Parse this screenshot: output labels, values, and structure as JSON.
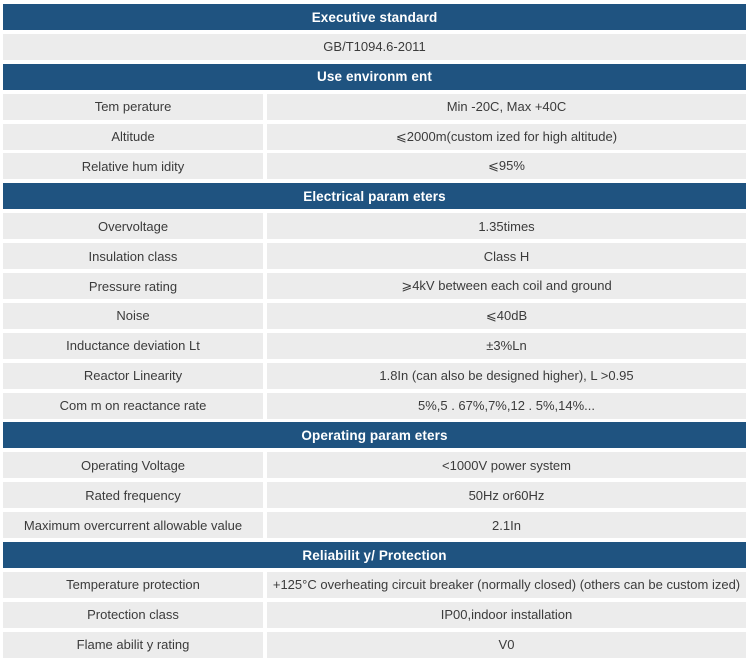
{
  "theme": {
    "header_bg": "#1F5380",
    "header_text_color": "#FFFFFF",
    "row_bg": "#ECECEC",
    "row_text_color": "#3B3B3B",
    "page_bg": "#FFFFFF"
  },
  "table": {
    "sections": [
      {
        "header": "Executive standard",
        "rows": [
          {
            "span": "GB/T1094.6-2011"
          }
        ]
      },
      {
        "header": "Use environm ent",
        "rows": [
          {
            "label": "Tem perature",
            "value": "Min -20C, Max +40C"
          },
          {
            "label": "Altitude",
            "value": "⩽2000m(custom ized for high altitude)"
          },
          {
            "label": "Relative hum idity",
            "value": "⩽95%"
          }
        ]
      },
      {
        "header": "Electrical param eters",
        "rows": [
          {
            "label": "Overvoltage",
            "value": "1.35times"
          },
          {
            "label": "Insulation class",
            "value": "Class H"
          },
          {
            "label": "Pressure rating",
            "value": "⩾4kV between each coil and ground"
          },
          {
            "label": "Noise",
            "value": "⩽40dB"
          },
          {
            "label": "Inductance deviation Lt",
            "value": "±3%Ln"
          },
          {
            "label": "Reactor Linearity",
            "value": "1.8In (can also be designed higher), L >0.95"
          },
          {
            "label": "Com m on reactance rate",
            "value": "5%,5 . 67%,7%,12 . 5%,14%..."
          }
        ]
      },
      {
        "header": "Operating param eters",
        "rows": [
          {
            "label": "Operating Voltage",
            "value": "<1000V power system"
          },
          {
            "label": "Rated frequency",
            "value": "50Hz or60Hz"
          },
          {
            "label": "Maximum overcurrent allowable value",
            "value": "2.1In"
          }
        ]
      },
      {
        "header": "Reliabilit y/ Protection",
        "rows": [
          {
            "label": "Temperature protection",
            "value": "+125°C overheating circuit breaker (normally closed) (others can be custom ized)"
          },
          {
            "label": "Protection class",
            "value": "IP00,indoor installation"
          },
          {
            "label": "Flame abilit y rating",
            "value": "V0"
          }
        ]
      }
    ]
  }
}
